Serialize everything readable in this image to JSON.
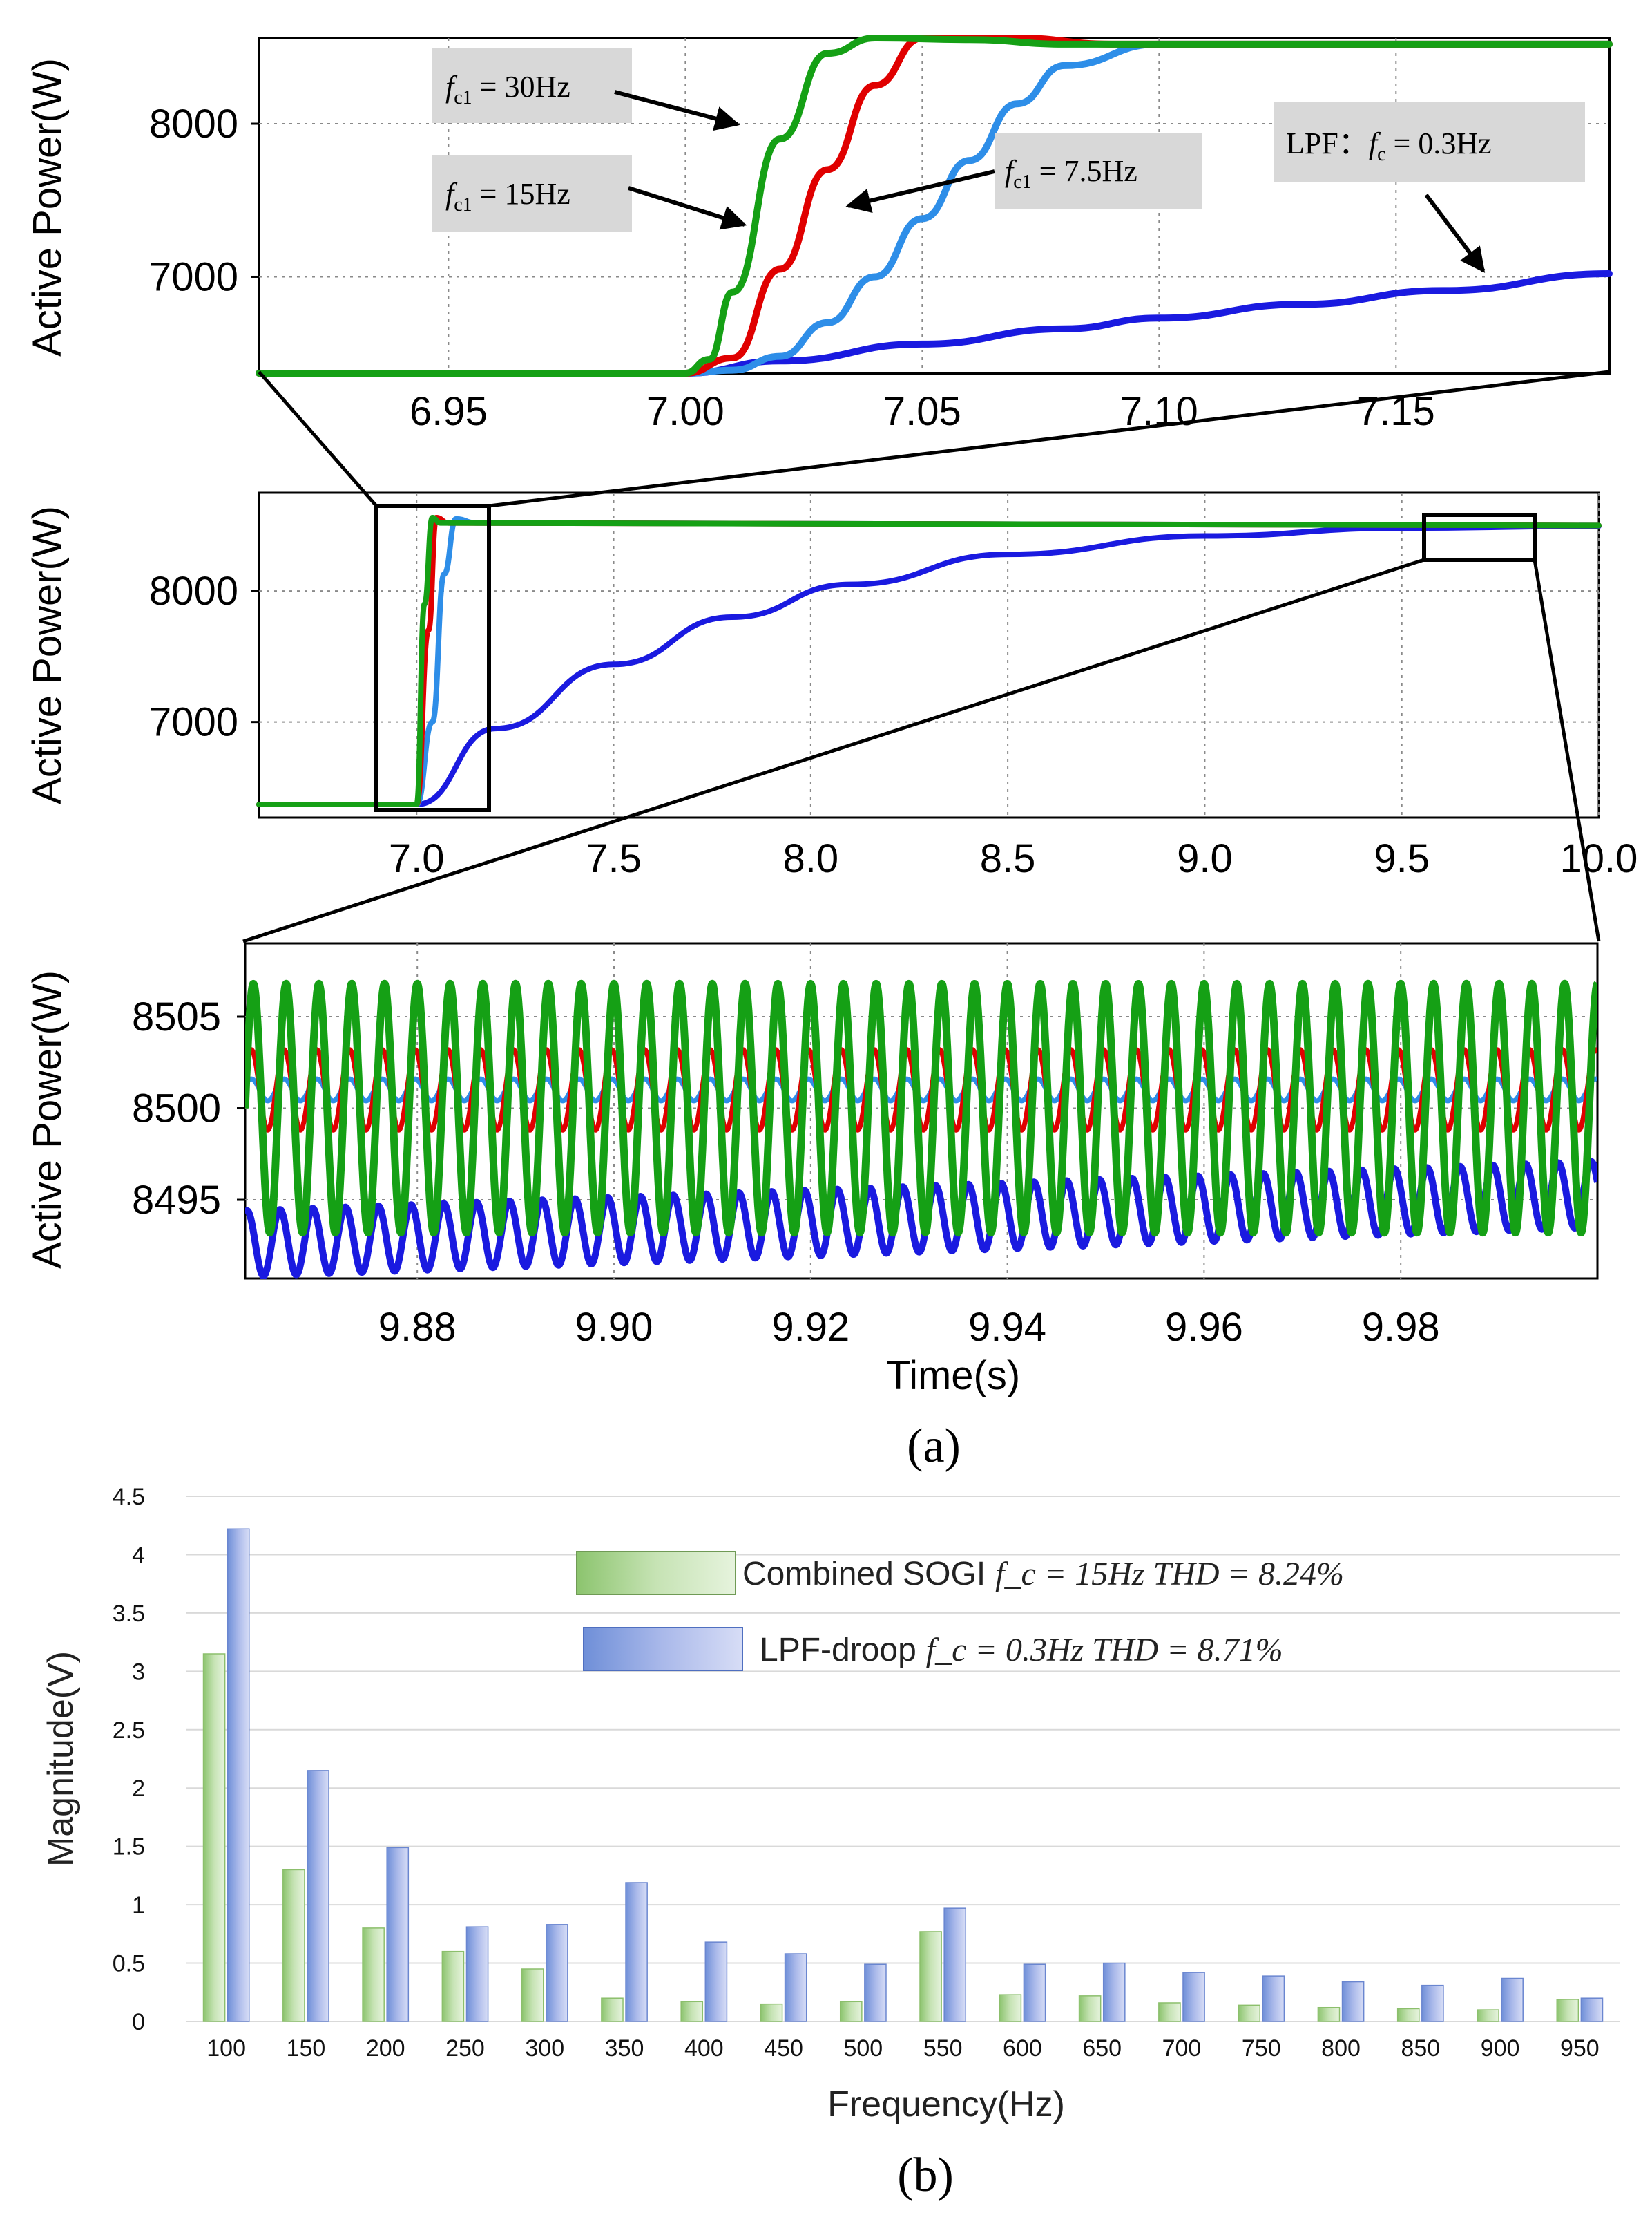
{
  "chart_data": [
    {
      "type": "line",
      "title": "",
      "xlabel": "",
      "ylabel": "Active Power(W)",
      "xlim": [
        6.91,
        7.195
      ],
      "ylim": [
        6370,
        8560
      ],
      "x_ticks": [
        "6.95",
        "7.00",
        "7.05",
        "7.10",
        "7.15"
      ],
      "x_tick_values": [
        6.95,
        7.0,
        7.05,
        7.1,
        7.15
      ],
      "y_ticks": [
        "7000",
        "8000"
      ],
      "y_tick_values": [
        7000,
        8000
      ],
      "grid": true,
      "series": [
        {
          "name": "LPF: fc = 0.3Hz",
          "color": "#1a1ae0",
          "x": [
            6.91,
            7.0,
            7.02,
            7.05,
            7.08,
            7.1,
            7.13,
            7.16,
            7.195
          ],
          "values": [
            6370,
            6370,
            6450,
            6560,
            6660,
            6730,
            6820,
            6910,
            7020
          ]
        },
        {
          "name": "fc1 = 7.5Hz",
          "color": "#2e8ee8",
          "x": [
            6.91,
            7.0,
            7.01,
            7.02,
            7.03,
            7.04,
            7.05,
            7.06,
            7.07,
            7.08,
            7.1,
            7.195
          ],
          "values": [
            6370,
            6370,
            6390,
            6480,
            6700,
            7000,
            7380,
            7760,
            8130,
            8380,
            8520,
            8520
          ]
        },
        {
          "name": "fc1 = 15Hz",
          "color": "#e00000",
          "x": [
            6.91,
            7.0,
            7.01,
            7.02,
            7.03,
            7.04,
            7.05,
            7.07,
            7.09,
            7.195
          ],
          "values": [
            6370,
            6370,
            6470,
            7050,
            7700,
            8250,
            8560,
            8560,
            8520,
            8520
          ]
        },
        {
          "name": "fc1 = 30Hz",
          "color": "#15a015",
          "x": [
            6.91,
            7.0,
            7.005,
            7.01,
            7.02,
            7.03,
            7.04,
            7.06,
            7.08,
            7.195
          ],
          "values": [
            6370,
            6370,
            6460,
            6900,
            7900,
            8460,
            8560,
            8550,
            8520,
            8520
          ]
        }
      ],
      "annotations": [
        {
          "sym": "f",
          "sub": "c1",
          "text": " = 30Hz"
        },
        {
          "sym": "f",
          "sub": "c1",
          "text": " = 15Hz"
        },
        {
          "sym": "f",
          "sub": "c1",
          "text": " = 7.5Hz"
        },
        {
          "prefix": "LPF：",
          "sym": "f",
          "sub": "c",
          "text": " = 0.3Hz"
        }
      ]
    },
    {
      "type": "line",
      "title": "",
      "xlabel": "",
      "ylabel": "Active Power(W)",
      "xlim": [
        6.6,
        10.0
      ],
      "ylim": [
        6270,
        8750
      ],
      "x_ticks": [
        "7.0",
        "7.5",
        "8.0",
        "8.5",
        "9.0",
        "9.5",
        "10.0"
      ],
      "x_tick_values": [
        7.0,
        7.5,
        8.0,
        8.5,
        9.0,
        9.5,
        10.0
      ],
      "y_ticks": [
        "7000",
        "8000"
      ],
      "y_tick_values": [
        7000,
        8000
      ],
      "grid": true,
      "series": [
        {
          "name": "LPF: fc = 0.3Hz",
          "color": "#1a1ae0",
          "x": [
            6.6,
            7.0,
            7.2,
            7.5,
            7.8,
            8.1,
            8.5,
            9.0,
            9.5,
            10.0
          ],
          "values": [
            6370,
            6370,
            6950,
            7440,
            7800,
            8050,
            8280,
            8420,
            8480,
            8495
          ]
        },
        {
          "name": "fc1 = 7.5Hz",
          "color": "#2e8ee8",
          "x": [
            6.6,
            7.0,
            7.04,
            7.07,
            7.1,
            7.15,
            10.0
          ],
          "values": [
            6370,
            6370,
            7000,
            8130,
            8550,
            8520,
            8500
          ]
        },
        {
          "name": "fc1 = 15Hz",
          "color": "#e00000",
          "x": [
            6.6,
            7.0,
            7.03,
            7.05,
            7.08,
            10.0
          ],
          "values": [
            6370,
            6370,
            7700,
            8560,
            8520,
            8500
          ]
        },
        {
          "name": "fc1 = 30Hz",
          "color": "#15a015",
          "x": [
            6.6,
            7.0,
            7.02,
            7.04,
            7.06,
            10.0
          ],
          "values": [
            6370,
            6370,
            7900,
            8560,
            8520,
            8500
          ]
        }
      ]
    },
    {
      "type": "line",
      "title": "",
      "xlabel": "Time(s)",
      "ylabel": "Active Power(W)",
      "xlim": [
        9.8625,
        10.0
      ],
      "ylim": [
        8490.7,
        8509.0
      ],
      "x_ticks": [
        "9.88",
        "9.90",
        "9.92",
        "9.94",
        "9.96",
        "9.98"
      ],
      "x_tick_values": [
        9.88,
        9.9,
        9.92,
        9.94,
        9.96,
        9.98
      ],
      "y_ticks": [
        "8495",
        "8500",
        "8505"
      ],
      "y_tick_values": [
        8495,
        8500,
        8505
      ],
      "grid": true,
      "oscillation_hz": 300,
      "series": [
        {
          "name": "fc1 = 30Hz",
          "color": "#15a015",
          "center": 8500.0,
          "amplitude": 6.8
        },
        {
          "name": "fc1 = 15Hz",
          "color": "#e00000",
          "center": 8501.0,
          "amplitude": 2.2
        },
        {
          "name": "fc1 = 7.5Hz",
          "color": "#2e8ee8",
          "center": 8501.0,
          "amplitude": 0.6
        },
        {
          "name": "LPF: fc = 0.3Hz",
          "color": "#1a1ae0",
          "center_start": 8492.6,
          "center_end": 8495.3,
          "amplitude": 1.8
        }
      ]
    },
    {
      "type": "bar",
      "title": "",
      "xlabel": "Frequency(Hz)",
      "ylabel": "Magnitude(V)",
      "ylim": [
        0,
        4.5
      ],
      "y_ticks": [
        "0",
        "0.5",
        "1",
        "1.5",
        "2",
        "2.5",
        "3",
        "3.5",
        "4",
        "4.5"
      ],
      "y_tick_values": [
        0,
        0.5,
        1,
        1.5,
        2,
        2.5,
        3,
        3.5,
        4,
        4.5
      ],
      "categories": [
        "100",
        "150",
        "200",
        "250",
        "300",
        "350",
        "400",
        "450",
        "500",
        "550",
        "600",
        "650",
        "700",
        "750",
        "800",
        "850",
        "900",
        "950"
      ],
      "series": [
        {
          "name": "Combined SOGI",
          "formula": "f_c = 15Hz THD = 8.24%",
          "color": "#a9d18e",
          "values": [
            3.15,
            1.3,
            0.8,
            0.6,
            0.45,
            0.2,
            0.17,
            0.15,
            0.17,
            0.77,
            0.23,
            0.22,
            0.16,
            0.14,
            0.12,
            0.11,
            0.1,
            0.19
          ]
        },
        {
          "name": "LPF-droop",
          "formula": "f_c = 0.3Hz THD = 8.71%",
          "color": "#8fa9e0",
          "values": [
            4.22,
            2.15,
            1.49,
            0.81,
            0.83,
            1.19,
            0.68,
            0.58,
            0.49,
            0.97,
            0.49,
            0.5,
            0.42,
            0.39,
            0.34,
            0.31,
            0.37,
            0.2
          ]
        }
      ]
    }
  ],
  "captions": {
    "a": "(a)",
    "b": "(b)"
  }
}
